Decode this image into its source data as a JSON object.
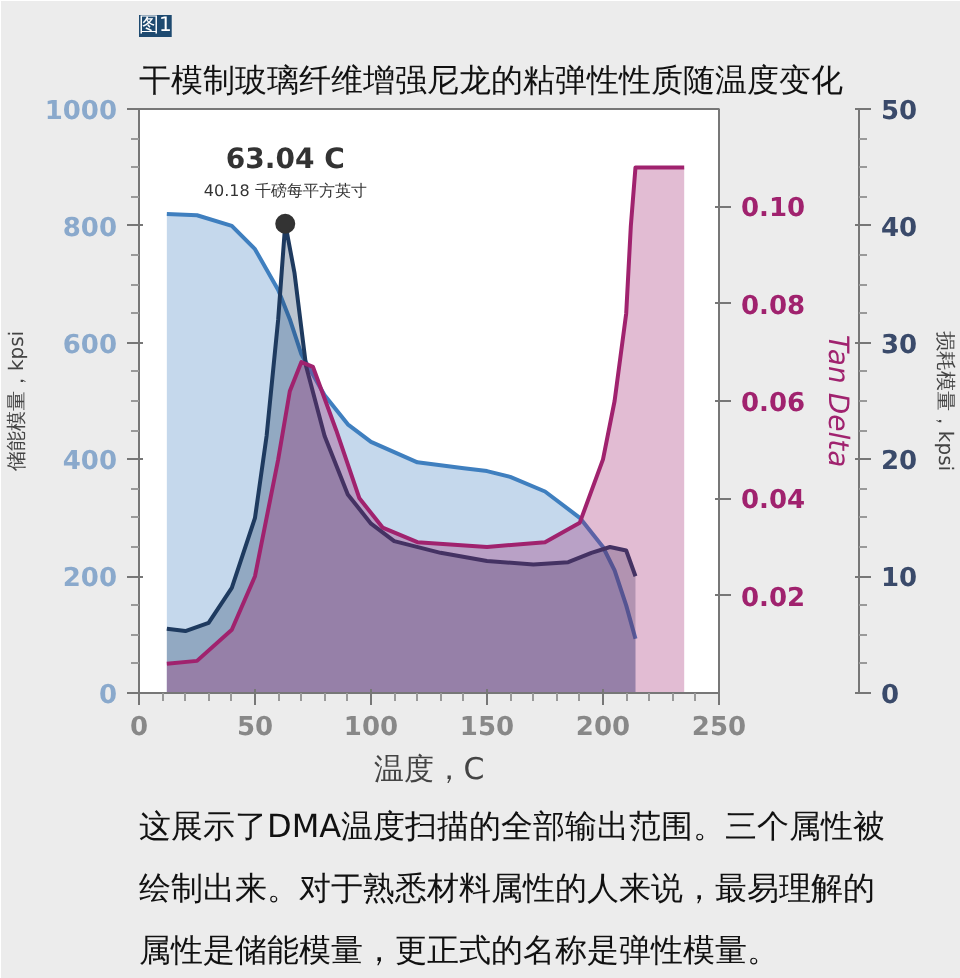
{
  "chart_data": {
    "type": "area",
    "title": "干模制玻璃纤维增强尼龙的粘弹性性质随温度变化",
    "xlabel": "温度，C",
    "ylabel": "储能模量，kpsi",
    "y2label": "损耗模量，kpsi",
    "y3label": "Tan Delta",
    "xlim": [
      0,
      250
    ],
    "xticks": [
      0,
      50,
      100,
      150,
      200,
      250
    ],
    "ylim": [
      0,
      1000
    ],
    "yticks": [
      0,
      200,
      400,
      600,
      800,
      1000
    ],
    "y2lim": [
      0,
      50
    ],
    "y2ticks": [
      0,
      10,
      20,
      30,
      40,
      50
    ],
    "y3lim": [
      0,
      0.12
    ],
    "y3ticks": [
      0.02,
      0.04,
      0.06,
      0.08,
      {
        "value": 0.1,
        "label": "0.10"
      }
    ],
    "grid": false,
    "series": [
      {
        "color": "#3f7fbf",
        "axis": "y",
        "x": [
          12,
          25,
          40,
          50,
          60,
          65,
          70,
          80,
          90,
          100,
          120,
          140,
          150,
          160,
          175,
          190,
          200,
          205,
          210,
          214
        ],
        "values": [
          820,
          818,
          800,
          760,
          690,
          640,
          580,
          510,
          460,
          430,
          395,
          385,
          380,
          370,
          345,
          300,
          250,
          210,
          150,
          93
        ]
      },
      {
        "color": "#1e3a5f",
        "axis": "y2",
        "x": [
          12,
          20,
          30,
          40,
          50,
          55,
          60,
          63.04,
          67,
          72,
          80,
          90,
          100,
          110,
          130,
          150,
          170,
          185,
          195,
          203,
          210,
          214
        ],
        "values": [
          5.5,
          5.3,
          6,
          9,
          15,
          22,
          32,
          40.18,
          36,
          28,
          22,
          17,
          14.5,
          13,
          12,
          11.3,
          11,
          11.2,
          12,
          12.5,
          12.2,
          10
        ]
      },
      {
        "color": "#a0226e",
        "axis": "y3",
        "x": [
          12,
          25,
          40,
          50,
          60,
          65,
          70,
          75,
          85,
          95,
          105,
          120,
          150,
          175,
          190,
          200,
          205,
          210,
          212,
          214,
          235
        ],
        "values": [
          0.006,
          0.0066,
          0.013,
          0.024,
          0.048,
          0.062,
          0.068,
          0.067,
          0.054,
          0.04,
          0.034,
          0.031,
          0.03,
          0.031,
          0.035,
          0.048,
          0.06,
          0.078,
          0.096,
          0.108,
          0.108
        ]
      },
      {
        "type": "scatter",
        "color": "#333333",
        "axis": "y2",
        "x": [
          63.04
        ],
        "values": [
          40.18
        ],
        "marker": "circle",
        "value_labels": [
          "40.18 千磅每平方英寸"
        ]
      }
    ],
    "annotations": [
      "图1",
      "63.04 C",
      "这展示了DMA温度扫描的全部输出范围。三个属性被绘制出来。对于熟悉材料属性的人来说，最易理解的属性是储能模量，更正式的名称是弹性模量。"
    ]
  }
}
